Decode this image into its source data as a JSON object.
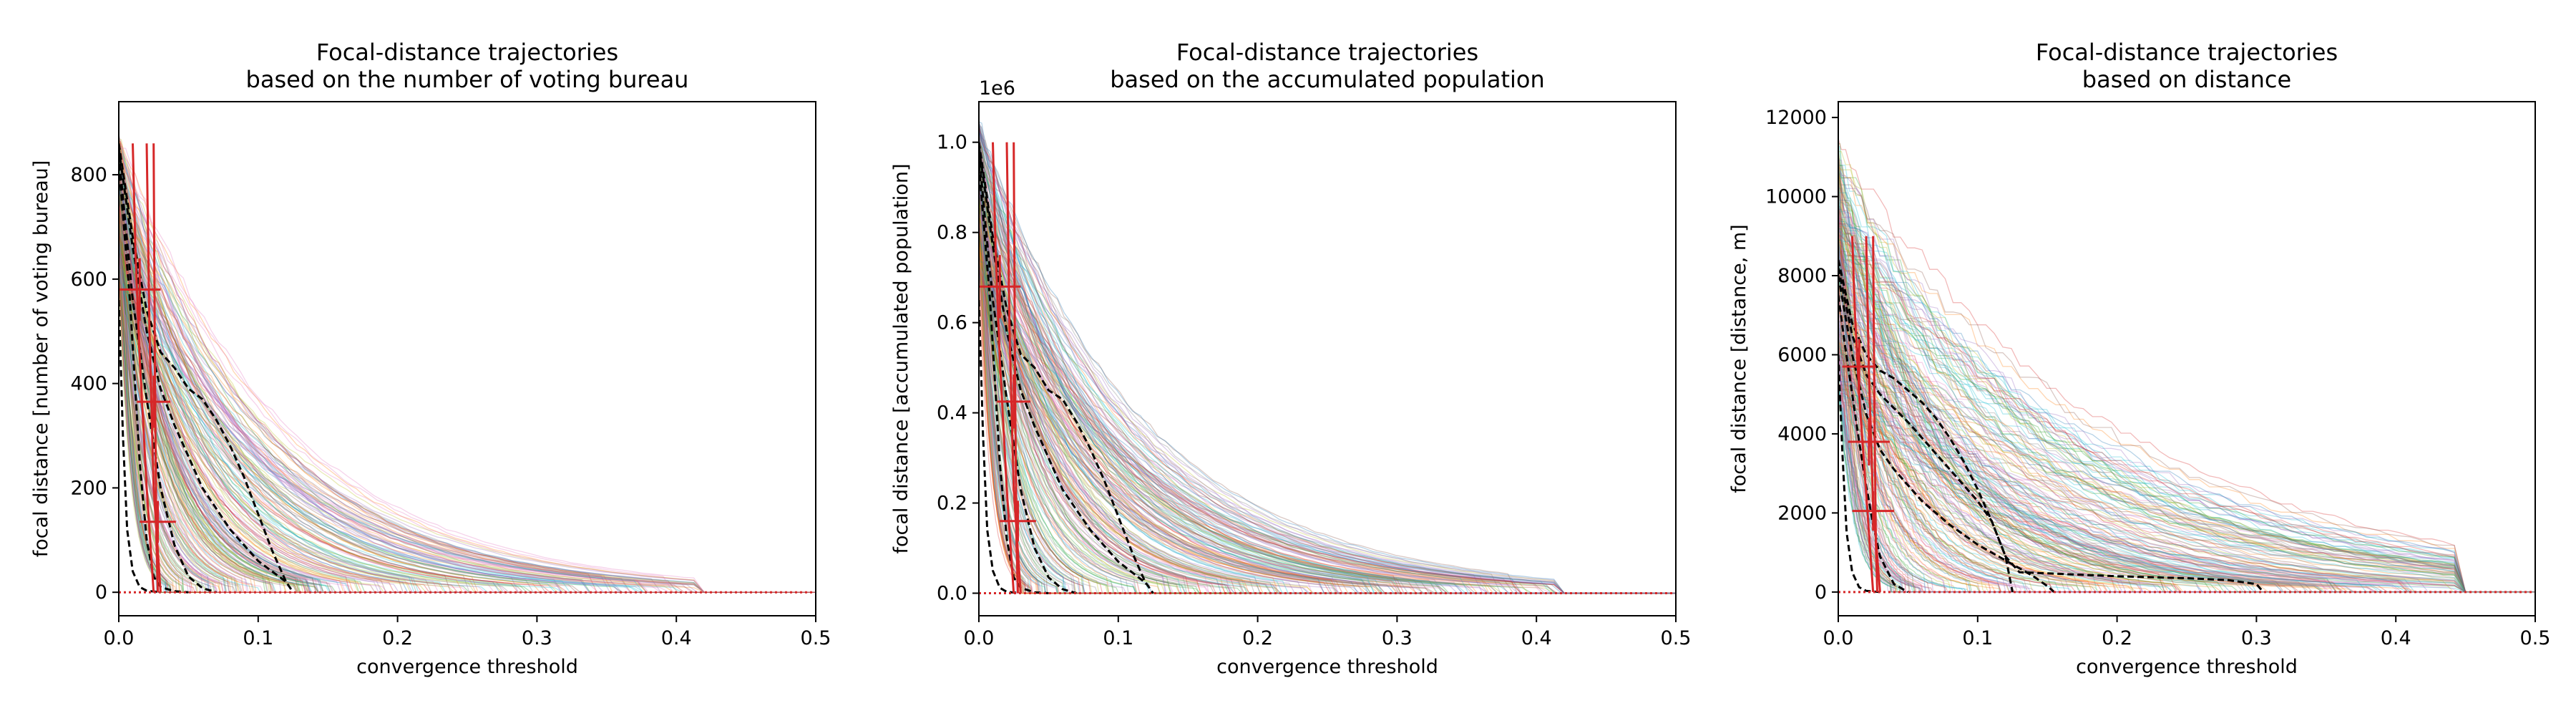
{
  "figure": {
    "background": "#ffffff",
    "trajectory_palette": [
      "#1f77b4",
      "#ff7f0e",
      "#2ca02c",
      "#d62728",
      "#9467bd",
      "#8c564b",
      "#e377c2",
      "#7f7f7f",
      "#bcbd22",
      "#17becf"
    ],
    "median_color": "#000000",
    "reference_color": "#d62728"
  },
  "chart_data": [
    {
      "type": "line",
      "title": "Focal-distance trajectories\nbased on the number of voting bureau",
      "xlabel": "convergence threshold",
      "ylabel": "focal distance [number of voting bureau]",
      "xlim": [
        0,
        0.5
      ],
      "ylim": [
        -45,
        940
      ],
      "xticks": [
        0,
        0.1,
        0.2,
        0.3,
        0.4,
        0.5
      ],
      "xtick_labels": [
        "0.0",
        "0.1",
        "0.2",
        "0.3",
        "0.4",
        "0.5"
      ],
      "yticks": [
        0,
        200,
        400,
        600,
        800
      ],
      "ytick_labels": [
        "0",
        "200",
        "400",
        "600",
        "800"
      ],
      "offset_text": "",
      "grid": false,
      "trajectories": {
        "count": 260,
        "y_start_range": [
          600,
          880
        ],
        "max_extent": 0.42,
        "scale_range": [
          0.008,
          0.12
        ],
        "step_noise": 0.03
      },
      "median_lines": [
        {
          "x": [
            0,
            0.003,
            0.006,
            0.01,
            0.015,
            0.02,
            0.03
          ],
          "y": [
            560,
            300,
            120,
            40,
            10,
            3,
            0
          ]
        },
        {
          "x": [
            0,
            0.008,
            0.015,
            0.02,
            0.025,
            0.03,
            0.04,
            0.05
          ],
          "y": [
            820,
            560,
            250,
            100,
            30,
            10,
            2,
            0
          ]
        },
        {
          "x": [
            0,
            0.005,
            0.01,
            0.02,
            0.03,
            0.04,
            0.05,
            0.06,
            0.07
          ],
          "y": [
            840,
            700,
            560,
            370,
            200,
            90,
            30,
            8,
            0
          ]
        },
        {
          "x": [
            0,
            0.01,
            0.02,
            0.03,
            0.04,
            0.05,
            0.06,
            0.08,
            0.1,
            0.12,
            0.125
          ],
          "y": [
            850,
            660,
            500,
            390,
            320,
            260,
            200,
            120,
            60,
            20,
            0
          ]
        },
        {
          "x": [
            0,
            0.01,
            0.02,
            0.03,
            0.04,
            0.05,
            0.06,
            0.07,
            0.08,
            0.09,
            0.1,
            0.11,
            0.12
          ],
          "y": [
            860,
            680,
            540,
            460,
            430,
            390,
            370,
            330,
            280,
            220,
            150,
            80,
            20
          ]
        }
      ],
      "reference_lines": [
        {
          "x": [
            0.01,
            0.012,
            0.015,
            0.02,
            0.025
          ],
          "y": [
            860,
            650,
            450,
            200,
            0
          ]
        },
        {
          "x": [
            0.02,
            0.022,
            0.025,
            0.03
          ],
          "y": [
            860,
            500,
            200,
            0
          ]
        },
        {
          "x": [
            0.025,
            0.026,
            0.027,
            0.028
          ],
          "y": [
            860,
            400,
            100,
            0
          ]
        }
      ],
      "reference_markers": [
        {
          "x": 0.015,
          "y": 580,
          "xerr": 0.015,
          "yerr": 60
        },
        {
          "x": 0.025,
          "y": 365,
          "xerr": 0.012,
          "yerr": 50
        },
        {
          "x": 0.028,
          "y": 135,
          "xerr": 0.013,
          "yerr": 40
        }
      ],
      "baseline": {
        "y": 0,
        "style": "dotted"
      }
    },
    {
      "type": "line",
      "title": "Focal-distance trajectories\nbased on the accumulated population",
      "xlabel": "convergence threshold",
      "ylabel": "focal distance [accumulated population]",
      "xlim": [
        0,
        0.5
      ],
      "ylim": [
        -50000,
        1090000
      ],
      "xticks": [
        0,
        0.1,
        0.2,
        0.3,
        0.4,
        0.5
      ],
      "xtick_labels": [
        "0.0",
        "0.1",
        "0.2",
        "0.3",
        "0.4",
        "0.5"
      ],
      "yticks": [
        0,
        200000,
        400000,
        600000,
        800000,
        1000000
      ],
      "ytick_labels": [
        "0.0",
        "0.2",
        "0.4",
        "0.6",
        "0.8",
        "1.0"
      ],
      "offset_text": "1e6",
      "grid": false,
      "trajectories": {
        "count": 260,
        "y_start_range": [
          700000,
          1050000
        ],
        "max_extent": 0.42,
        "scale_range": [
          0.008,
          0.12
        ],
        "step_noise": 0.03
      },
      "median_lines": [
        {
          "x": [
            0,
            0.003,
            0.006,
            0.01,
            0.015,
            0.02,
            0.03
          ],
          "y": [
            650000,
            350000,
            140000,
            50000,
            12000,
            3000,
            0
          ]
        },
        {
          "x": [
            0,
            0.008,
            0.015,
            0.02,
            0.025,
            0.03,
            0.04,
            0.05
          ],
          "y": [
            950000,
            650000,
            290000,
            120000,
            35000,
            12000,
            2000,
            0
          ]
        },
        {
          "x": [
            0,
            0.005,
            0.01,
            0.02,
            0.03,
            0.04,
            0.05,
            0.06,
            0.07
          ],
          "y": [
            980000,
            810000,
            650000,
            430000,
            230000,
            100000,
            35000,
            9000,
            0
          ]
        },
        {
          "x": [
            0,
            0.01,
            0.02,
            0.03,
            0.04,
            0.05,
            0.06,
            0.08,
            0.1,
            0.12,
            0.125
          ],
          "y": [
            990000,
            770000,
            580000,
            450000,
            370000,
            300000,
            230000,
            140000,
            70000,
            22000,
            0
          ]
        },
        {
          "x": [
            0,
            0.01,
            0.02,
            0.03,
            0.04,
            0.05,
            0.06,
            0.07,
            0.08,
            0.09,
            0.1,
            0.11,
            0.12
          ],
          "y": [
            1000000,
            790000,
            630000,
            530000,
            500000,
            450000,
            430000,
            380000,
            320000,
            250000,
            170000,
            90000,
            20000
          ]
        }
      ],
      "reference_lines": [
        {
          "x": [
            0.01,
            0.012,
            0.015,
            0.02,
            0.025
          ],
          "y": [
            1000000,
            760000,
            520000,
            230000,
            0
          ]
        },
        {
          "x": [
            0.02,
            0.022,
            0.025,
            0.03
          ],
          "y": [
            1000000,
            580000,
            230000,
            0
          ]
        },
        {
          "x": [
            0.025,
            0.026,
            0.027,
            0.028
          ],
          "y": [
            1000000,
            460000,
            110000,
            0
          ]
        }
      ],
      "reference_markers": [
        {
          "x": 0.015,
          "y": 680000,
          "xerr": 0.015,
          "yerr": 70000
        },
        {
          "x": 0.025,
          "y": 425000,
          "xerr": 0.012,
          "yerr": 60000
        },
        {
          "x": 0.028,
          "y": 160000,
          "xerr": 0.013,
          "yerr": 45000
        }
      ],
      "baseline": {
        "y": 0,
        "style": "dotted"
      }
    },
    {
      "type": "line",
      "title": "Focal-distance trajectories\nbased on distance",
      "xlabel": "convergence threshold",
      "ylabel": "focal distance [distance, m]",
      "xlim": [
        0,
        0.5
      ],
      "ylim": [
        -600,
        12400
      ],
      "xticks": [
        0,
        0.1,
        0.2,
        0.3,
        0.4,
        0.5
      ],
      "xtick_labels": [
        "0.0",
        "0.1",
        "0.2",
        "0.3",
        "0.4",
        "0.5"
      ],
      "yticks": [
        0,
        2000,
        4000,
        6000,
        8000,
        10000,
        12000
      ],
      "ytick_labels": [
        "0",
        "2000",
        "4000",
        "6000",
        "8000",
        "10000",
        "12000"
      ],
      "offset_text": "",
      "grid": false,
      "trajectories": {
        "count": 260,
        "y_start_range": [
          5000,
          11500
        ],
        "max_extent": 0.45,
        "scale_range": [
          0.01,
          0.2
        ],
        "step_noise": 0.09
      },
      "median_lines": [
        {
          "x": [
            0,
            0.003,
            0.006,
            0.01,
            0.015,
            0.02,
            0.03
          ],
          "y": [
            6000,
            3500,
            1500,
            500,
            120,
            30,
            0
          ]
        },
        {
          "x": [
            0,
            0.005,
            0.01,
            0.015,
            0.02,
            0.025,
            0.03,
            0.04,
            0.05
          ],
          "y": [
            7500,
            6200,
            5000,
            3800,
            2700,
            1700,
            900,
            200,
            0
          ]
        },
        {
          "x": [
            0,
            0.01,
            0.02,
            0.03,
            0.04,
            0.05,
            0.06,
            0.08,
            0.1,
            0.12,
            0.14,
            0.15,
            0.155
          ],
          "y": [
            8000,
            6000,
            4500,
            3600,
            3100,
            2700,
            2300,
            1700,
            1200,
            800,
            400,
            150,
            0
          ]
        },
        {
          "x": [
            0,
            0.01,
            0.02,
            0.03,
            0.05,
            0.07,
            0.09,
            0.1,
            0.11,
            0.12,
            0.13,
            0.2,
            0.25,
            0.28,
            0.3,
            0.305
          ],
          "y": [
            8200,
            6500,
            5500,
            5000,
            4300,
            3500,
            2700,
            2300,
            1800,
            900,
            500,
            400,
            350,
            300,
            200,
            0
          ]
        },
        {
          "x": [
            0,
            0.01,
            0.02,
            0.03,
            0.04,
            0.05,
            0.06,
            0.07,
            0.08,
            0.09,
            0.1,
            0.11,
            0.12,
            0.125
          ],
          "y": [
            8400,
            6800,
            6000,
            5600,
            5400,
            5100,
            4800,
            4400,
            3900,
            3300,
            2600,
            1800,
            900,
            0
          ]
        }
      ],
      "reference_lines": [
        {
          "x": [
            0.01,
            0.012,
            0.015,
            0.02,
            0.025
          ],
          "y": [
            9000,
            7000,
            5000,
            2500,
            0
          ]
        },
        {
          "x": [
            0.02,
            0.022,
            0.025,
            0.03
          ],
          "y": [
            9000,
            5500,
            2200,
            0
          ]
        },
        {
          "x": [
            0.025,
            0.026,
            0.027,
            0.028
          ],
          "y": [
            9000,
            4500,
            1200,
            0
          ]
        }
      ],
      "reference_markers": [
        {
          "x": 0.015,
          "y": 5700,
          "xerr": 0.012,
          "yerr": 700
        },
        {
          "x": 0.022,
          "y": 3800,
          "xerr": 0.015,
          "yerr": 600
        },
        {
          "x": 0.025,
          "y": 2050,
          "xerr": 0.015,
          "yerr": 500
        }
      ],
      "baseline": {
        "y": 0,
        "style": "dotted"
      }
    }
  ]
}
